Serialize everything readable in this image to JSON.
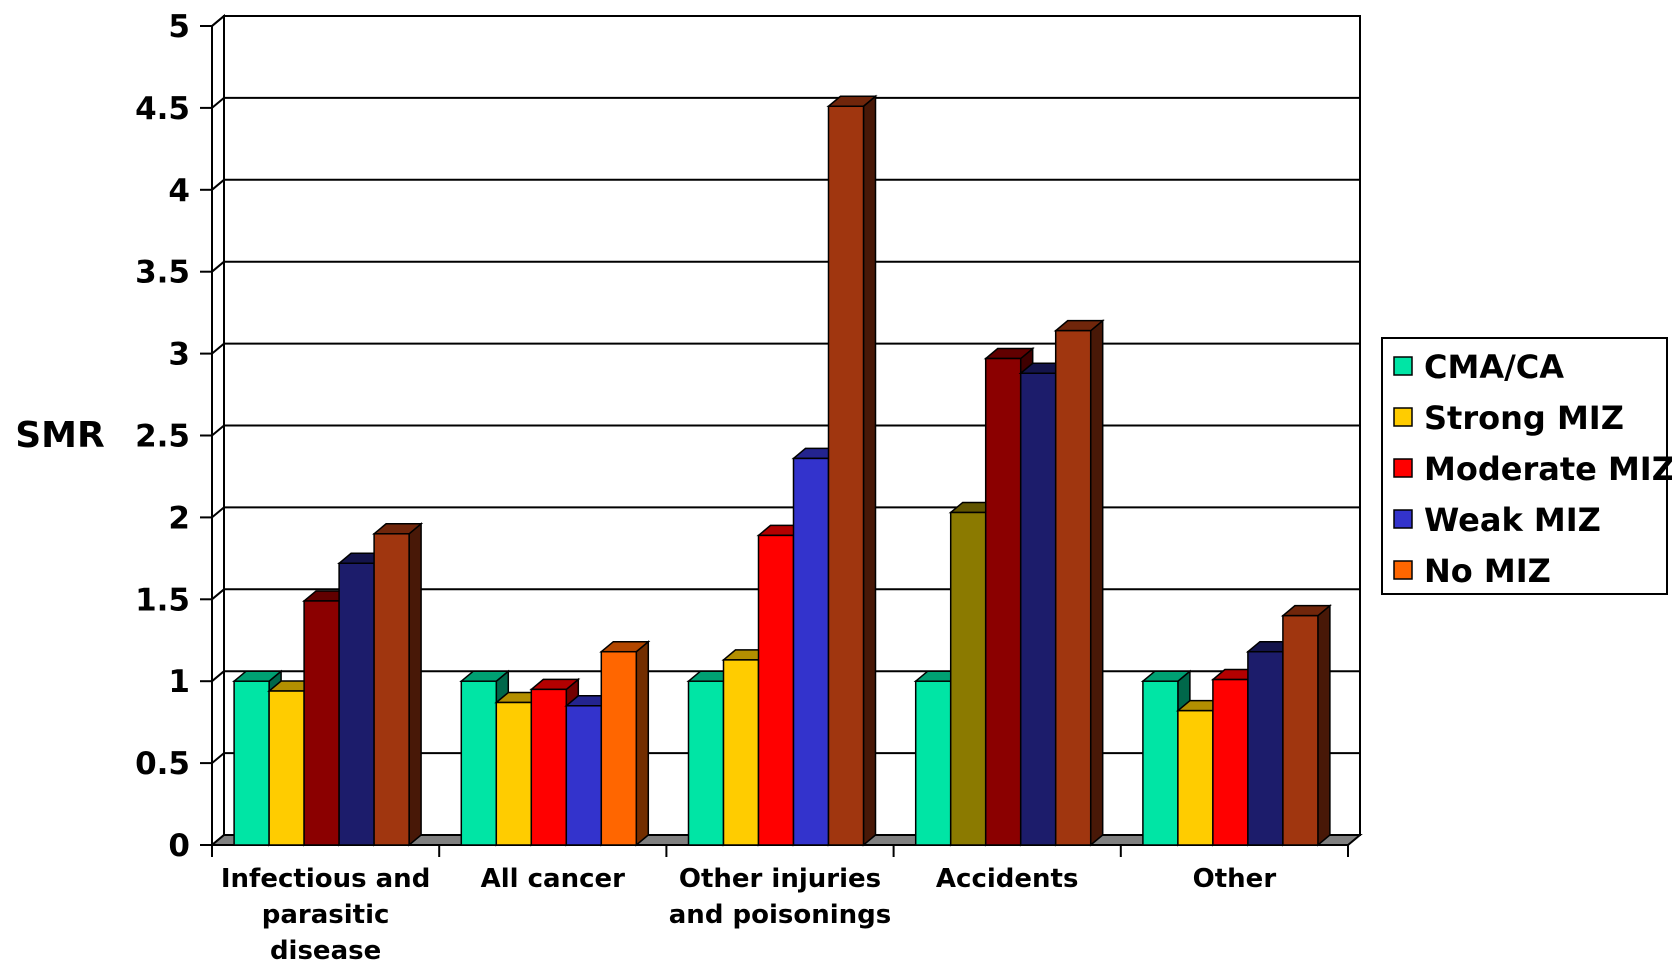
{
  "chart_data": {
    "type": "bar",
    "ylabel": "SMR",
    "xlabel": "",
    "ylim": [
      0,
      5
    ],
    "yticks": [
      "0",
      "0.5",
      "1",
      "1.5",
      "2",
      "2.5",
      "3",
      "3.5",
      "4",
      "4.5",
      "5"
    ],
    "grid": true,
    "legend_position": "right",
    "categories": [
      [
        "Infectious and",
        "parasitic",
        "disease"
      ],
      [
        "All cancer"
      ],
      [
        "Other injuries",
        "and poisonings"
      ],
      [
        "Accidents"
      ],
      [
        "Other"
      ]
    ],
    "series": [
      {
        "name": "CMA/CA",
        "color": "#00E5A5",
        "values": [
          1.0,
          1.0,
          1.0,
          1.0,
          1.0
        ]
      },
      {
        "name": "Strong MIZ",
        "color": "#FFCC00",
        "values": [
          0.94,
          0.87,
          1.13,
          2.03,
          0.82
        ]
      },
      {
        "name": "Moderate MIZ",
        "color": "#FF0000",
        "values": [
          1.49,
          0.95,
          1.89,
          2.97,
          1.01
        ]
      },
      {
        "name": "Weak MIZ",
        "color": "#3333CC",
        "values": [
          1.72,
          0.85,
          2.36,
          2.88,
          1.18
        ]
      },
      {
        "name": "No MIZ",
        "color": "#FF6600",
        "values": [
          1.9,
          1.18,
          4.51,
          3.14,
          1.4
        ]
      }
    ],
    "bar_colors": [
      [
        "#00E5A5",
        "#FFCC00",
        "#8B0000",
        "#1C1C6B",
        "#A0360F"
      ],
      [
        "#00E5A5",
        "#FFCC00",
        "#FF0000",
        "#3333CC",
        "#FF6600"
      ],
      [
        "#00E5A5",
        "#FFCC00",
        "#FF0000",
        "#3333CC",
        "#A0360F"
      ],
      [
        "#00E5A5",
        "#8B7A00",
        "#8B0000",
        "#1C1C6B",
        "#A0360F"
      ],
      [
        "#00E5A5",
        "#FFCC00",
        "#FF0000",
        "#1C1C6B",
        "#A0360F"
      ]
    ]
  }
}
